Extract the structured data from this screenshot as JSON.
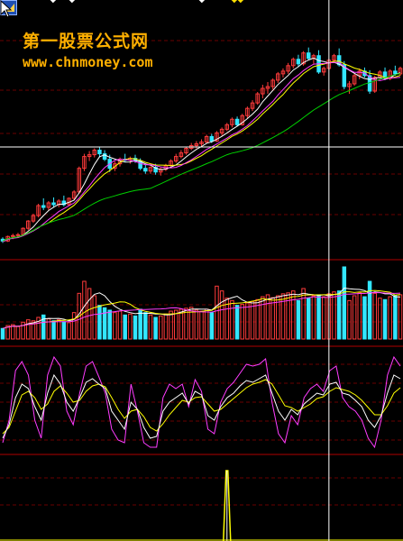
{
  "watermark": {
    "title": "第一股票公式网",
    "url": "www.chnmoney.com"
  },
  "icons": {
    "corner_logo": "app-logo-icon",
    "cursor": "mouse-pointer-icon",
    "markers": "diamond-marker-icon"
  },
  "top_markers": [
    "◆",
    "◆",
    "◆",
    "◆",
    "◆"
  ],
  "colors": {
    "background": "#000000",
    "candle_up": "#ff3b3b",
    "candle_down": "#33e6ff",
    "ma_short": "#ffffff",
    "ma_mid": "#ffff00",
    "ma_pink": "#ff3cff",
    "ma_long": "#00d000",
    "panel_divider": "#b00000",
    "grid_dashed": "#6a0000",
    "crosshair": "#ffffff"
  },
  "chart_data": {
    "type": "candlestick",
    "panels": [
      "price",
      "volume",
      "oscillator",
      "signal"
    ],
    "title": "",
    "xlabel": "",
    "ylabel": "",
    "candles": [
      [
        13.0,
        13.2,
        12.6,
        12.8
      ],
      [
        12.8,
        13.4,
        12.7,
        13.3
      ],
      [
        13.3,
        13.6,
        13.0,
        13.4
      ],
      [
        13.4,
        13.7,
        13.2,
        13.5
      ],
      [
        13.5,
        14.3,
        13.4,
        14.2
      ],
      [
        14.2,
        15.1,
        14.0,
        15.0
      ],
      [
        15.0,
        15.8,
        14.8,
        15.6
      ],
      [
        15.6,
        16.9,
        15.4,
        16.7
      ],
      [
        16.7,
        17.5,
        16.2,
        16.5
      ],
      [
        16.5,
        17.2,
        16.2,
        17.0
      ],
      [
        17.0,
        17.6,
        16.5,
        16.8
      ],
      [
        16.8,
        17.4,
        16.5,
        17.2
      ],
      [
        17.2,
        17.8,
        16.6,
        16.8
      ],
      [
        16.8,
        17.6,
        16.7,
        17.5
      ],
      [
        17.5,
        18.4,
        17.3,
        18.2
      ],
      [
        18.2,
        21.0,
        18.0,
        20.8
      ],
      [
        20.8,
        22.4,
        20.5,
        22.1
      ],
      [
        22.1,
        22.7,
        21.6,
        22.3
      ],
      [
        22.3,
        23.0,
        22.0,
        22.8
      ],
      [
        22.8,
        23.2,
        22.0,
        22.4
      ],
      [
        22.4,
        22.8,
        21.6,
        21.8
      ],
      [
        21.8,
        22.3,
        20.4,
        20.8
      ],
      [
        20.8,
        21.6,
        20.5,
        21.3
      ],
      [
        21.3,
        22.0,
        21.0,
        21.8
      ],
      [
        21.8,
        22.4,
        21.5,
        21.7
      ],
      [
        21.7,
        22.1,
        21.3,
        21.9
      ],
      [
        21.9,
        22.3,
        21.4,
        21.6
      ],
      [
        21.6,
        21.9,
        20.6,
        20.8
      ],
      [
        20.8,
        21.2,
        20.2,
        20.5
      ],
      [
        20.5,
        21.0,
        20.2,
        20.9
      ],
      [
        20.9,
        21.3,
        20.1,
        20.4
      ],
      [
        20.4,
        20.9,
        20.0,
        20.7
      ],
      [
        20.7,
        21.3,
        20.5,
        21.1
      ],
      [
        21.1,
        21.8,
        20.9,
        21.6
      ],
      [
        21.6,
        22.4,
        21.4,
        22.1
      ],
      [
        22.1,
        22.8,
        21.9,
        22.5
      ],
      [
        22.5,
        23.2,
        22.3,
        23.0
      ],
      [
        23.0,
        23.6,
        22.8,
        23.3
      ],
      [
        23.3,
        23.8,
        23.0,
        23.5
      ],
      [
        23.5,
        24.0,
        23.1,
        23.7
      ],
      [
        23.7,
        24.5,
        23.5,
        24.3
      ],
      [
        24.3,
        24.6,
        23.6,
        23.8
      ],
      [
        23.8,
        24.9,
        23.7,
        24.7
      ],
      [
        24.7,
        25.3,
        24.4,
        25.1
      ],
      [
        25.1,
        25.8,
        24.9,
        25.6
      ],
      [
        25.6,
        26.4,
        25.3,
        26.2
      ],
      [
        26.2,
        26.5,
        25.4,
        25.6
      ],
      [
        25.6,
        26.8,
        25.5,
        26.6
      ],
      [
        26.6,
        27.6,
        26.3,
        27.4
      ],
      [
        27.4,
        28.3,
        27.1,
        28.0
      ],
      [
        28.0,
        29.2,
        27.8,
        29.0
      ],
      [
        29.0,
        30.0,
        28.5,
        29.6
      ],
      [
        29.6,
        30.3,
        29.0,
        29.8
      ],
      [
        29.8,
        30.7,
        29.5,
        30.5
      ],
      [
        30.5,
        31.4,
        30.2,
        31.2
      ],
      [
        31.2,
        31.8,
        30.8,
        31.5
      ],
      [
        31.5,
        32.4,
        31.2,
        32.1
      ],
      [
        32.1,
        33.0,
        31.8,
        32.8
      ],
      [
        32.8,
        33.3,
        32.0,
        32.3
      ],
      [
        32.3,
        33.7,
        32.1,
        33.5
      ],
      [
        33.5,
        34.1,
        32.7,
        32.9
      ],
      [
        32.9,
        33.4,
        32.3,
        33.2
      ],
      [
        33.2,
        33.8,
        31.2,
        31.4
      ],
      [
        31.4,
        32.0,
        31.0,
        31.8
      ],
      [
        31.8,
        32.9,
        31.6,
        32.7
      ],
      [
        32.7,
        33.4,
        32.4,
        33.2
      ],
      [
        33.2,
        34.0,
        32.0,
        32.2
      ],
      [
        32.2,
        32.6,
        29.5,
        29.8
      ],
      [
        29.8,
        30.4,
        29.0,
        30.1
      ],
      [
        30.1,
        31.2,
        29.9,
        31.0
      ],
      [
        31.0,
        31.8,
        30.6,
        31.5
      ],
      [
        31.5,
        31.9,
        30.8,
        31.0
      ],
      [
        31.0,
        31.6,
        29.0,
        29.3
      ],
      [
        29.3,
        31.0,
        29.1,
        30.8
      ],
      [
        30.8,
        31.6,
        30.5,
        31.4
      ],
      [
        31.4,
        31.9,
        30.5,
        30.7
      ],
      [
        30.7,
        31.7,
        30.5,
        31.5
      ],
      [
        31.5,
        32.1,
        31.0,
        31.2
      ],
      [
        31.2,
        32.0,
        31.0,
        31.8
      ]
    ],
    "volume": [
      22,
      28,
      30,
      26,
      35,
      40,
      38,
      45,
      50,
      42,
      38,
      40,
      36,
      34,
      55,
      95,
      120,
      105,
      90,
      70,
      65,
      60,
      55,
      58,
      50,
      52,
      48,
      62,
      55,
      50,
      45,
      48,
      52,
      58,
      60,
      62,
      64,
      66,
      60,
      58,
      62,
      55,
      110,
      100,
      85,
      80,
      70,
      72,
      75,
      78,
      82,
      88,
      92,
      86,
      90,
      94,
      96,
      100,
      80,
      105,
      85,
      90,
      92,
      88,
      94,
      98,
      100,
      150,
      80,
      90,
      96,
      88,
      120,
      95,
      85,
      82,
      88,
      90,
      92
    ],
    "oscillator": {
      "k": [
        10,
        25,
        55,
        70,
        65,
        45,
        30,
        60,
        80,
        70,
        50,
        40,
        55,
        72,
        76,
        70,
        65,
        40,
        30,
        20,
        50,
        42,
        22,
        10,
        12,
        40,
        50,
        55,
        60,
        48,
        62,
        58,
        35,
        30,
        45,
        55,
        60,
        68,
        74,
        72,
        76,
        80,
        60,
        40,
        30,
        42,
        36,
        48,
        54,
        60,
        58,
        70,
        72,
        60,
        58,
        52,
        45,
        30,
        22,
        35,
        60,
        80,
        76
      ],
      "d": [
        15,
        22,
        40,
        58,
        62,
        55,
        42,
        48,
        62,
        68,
        60,
        50,
        52,
        62,
        68,
        70,
        67,
        55,
        42,
        32,
        40,
        42,
        34,
        22,
        18,
        26,
        36,
        44,
        52,
        50,
        55,
        56,
        48,
        40,
        42,
        48,
        54,
        60,
        66,
        70,
        72,
        75,
        70,
        58,
        46,
        44,
        40,
        44,
        48,
        54,
        56,
        62,
        66,
        64,
        62,
        58,
        52,
        44,
        36,
        36,
        46,
        60,
        66
      ],
      "j": [
        5,
        30,
        85,
        95,
        80,
        30,
        10,
        80,
        100,
        90,
        40,
        25,
        60,
        90,
        95,
        78,
        60,
        20,
        8,
        5,
        70,
        40,
        5,
        0,
        0,
        55,
        70,
        65,
        70,
        45,
        75,
        62,
        20,
        15,
        50,
        65,
        72,
        82,
        92,
        90,
        92,
        98,
        50,
        15,
        5,
        35,
        25,
        55,
        65,
        70,
        62,
        85,
        90,
        55,
        45,
        40,
        30,
        10,
        0,
        30,
        80,
        100,
        90
      ]
    },
    "signal": [
      0,
      0,
      0,
      0,
      0,
      0,
      0,
      0,
      0,
      0,
      0,
      0,
      0,
      0,
      0,
      0,
      0,
      0,
      0,
      0,
      0,
      0,
      0,
      0,
      0,
      0,
      0,
      0,
      0,
      0,
      0,
      0,
      0,
      0,
      0,
      0,
      0,
      0,
      0,
      0,
      0,
      0,
      0,
      0,
      0,
      0,
      0,
      0,
      0,
      0,
      0,
      0,
      0,
      0,
      0,
      0,
      0,
      0,
      0,
      0,
      0,
      0,
      0,
      0,
      0,
      0,
      0,
      0,
      0,
      0,
      0,
      0,
      0,
      0,
      0,
      0,
      0,
      0,
      0
    ],
    "signal_spike_index": 44,
    "crosshair": {
      "candle_index": 64,
      "price": 21.3
    },
    "ma_periods_hint": [
      "short",
      "mid",
      "long"
    ],
    "grid": true
  }
}
